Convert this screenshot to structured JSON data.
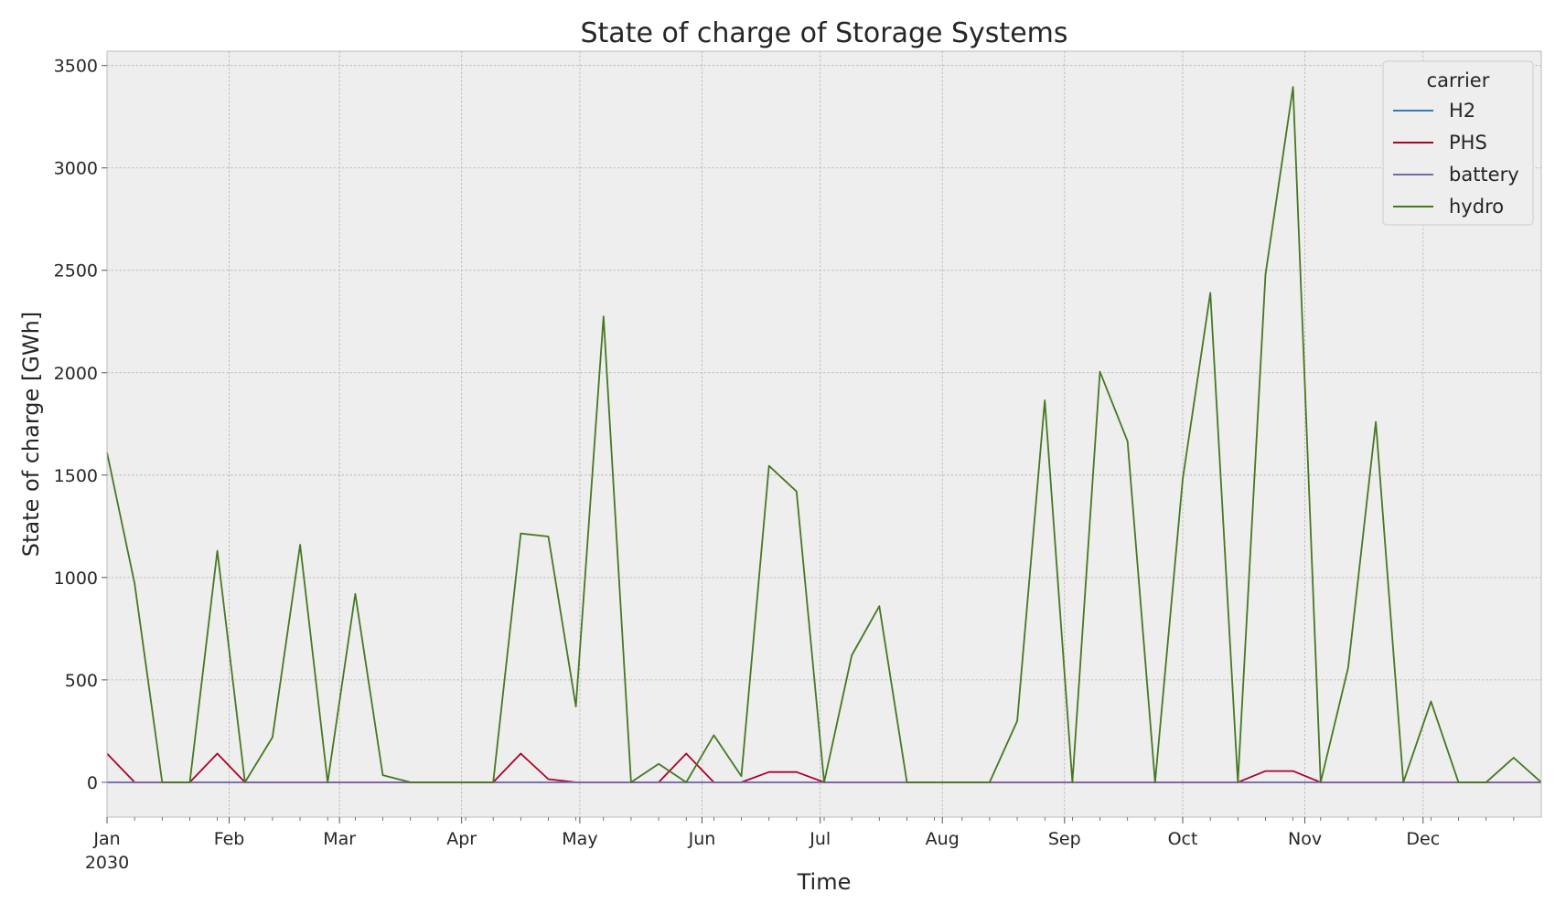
{
  "chart_data": {
    "type": "line",
    "title": "State of charge of Storage Systems",
    "xlabel": "Time",
    "ylabel": "State of charge [GWh]",
    "ylim": [
      -170,
      3570
    ],
    "yticks": [
      0,
      500,
      1000,
      1500,
      2000,
      2500,
      3000,
      3500
    ],
    "xrange": [
      "2030-01-01",
      "2030-12-31"
    ],
    "xticks": [
      {
        "date": "2030-01-01",
        "label": "Jan",
        "sublabel": "2030"
      },
      {
        "date": "2030-02-01",
        "label": "Feb"
      },
      {
        "date": "2030-03-01",
        "label": "Mar"
      },
      {
        "date": "2030-04-01",
        "label": "Apr"
      },
      {
        "date": "2030-05-01",
        "label": "May"
      },
      {
        "date": "2030-06-01",
        "label": "Jun"
      },
      {
        "date": "2030-07-01",
        "label": "Jul"
      },
      {
        "date": "2030-08-01",
        "label": "Aug"
      },
      {
        "date": "2030-09-01",
        "label": "Sep"
      },
      {
        "date": "2030-10-01",
        "label": "Oct"
      },
      {
        "date": "2030-11-01",
        "label": "Nov"
      },
      {
        "date": "2030-12-01",
        "label": "Dec"
      }
    ],
    "x": [
      "2030-01-01",
      "2030-01-08",
      "2030-01-15",
      "2030-01-22",
      "2030-01-29",
      "2030-02-05",
      "2030-02-12",
      "2030-02-19",
      "2030-02-26",
      "2030-03-05",
      "2030-03-12",
      "2030-03-19",
      "2030-03-26",
      "2030-04-02",
      "2030-04-09",
      "2030-04-16",
      "2030-04-23",
      "2030-04-30",
      "2030-05-07",
      "2030-05-14",
      "2030-05-21",
      "2030-05-28",
      "2030-06-04",
      "2030-06-11",
      "2030-06-18",
      "2030-06-25",
      "2030-07-02",
      "2030-07-09",
      "2030-07-16",
      "2030-07-23",
      "2030-07-30",
      "2030-08-06",
      "2030-08-13",
      "2030-08-20",
      "2030-08-27",
      "2030-09-03",
      "2030-09-10",
      "2030-09-17",
      "2030-09-24",
      "2030-10-01",
      "2030-10-08",
      "2030-10-15",
      "2030-10-22",
      "2030-10-29",
      "2030-11-05",
      "2030-11-12",
      "2030-11-19",
      "2030-11-26",
      "2030-12-03",
      "2030-12-10",
      "2030-12-17",
      "2030-12-24",
      "2030-12-31"
    ],
    "series": [
      {
        "name": "H2",
        "color": "#3a7ab0",
        "values": [
          0,
          0,
          0,
          0,
          0,
          0,
          0,
          0,
          0,
          0,
          0,
          0,
          0,
          0,
          0,
          0,
          0,
          0,
          0,
          0,
          0,
          0,
          0,
          0,
          0,
          0,
          0,
          0,
          0,
          0,
          0,
          0,
          0,
          0,
          0,
          0,
          0,
          0,
          0,
          0,
          0,
          0,
          0,
          0,
          0,
          0,
          0,
          0,
          0,
          0,
          0,
          0,
          0
        ]
      },
      {
        "name": "PHS",
        "color": "#a60628",
        "values": [
          140,
          0,
          0,
          0,
          140,
          0,
          0,
          0,
          0,
          0,
          0,
          0,
          0,
          0,
          0,
          140,
          15,
          0,
          0,
          0,
          0,
          140,
          0,
          0,
          50,
          50,
          0,
          0,
          0,
          0,
          0,
          0,
          0,
          0,
          0,
          0,
          0,
          0,
          0,
          0,
          0,
          0,
          55,
          55,
          0,
          0,
          0,
          0,
          0,
          0,
          0,
          0,
          0
        ]
      },
      {
        "name": "battery",
        "color": "#7a68a6",
        "values": [
          0,
          0,
          0,
          0,
          0,
          0,
          0,
          0,
          0,
          0,
          0,
          0,
          0,
          0,
          0,
          0,
          0,
          0,
          0,
          0,
          0,
          0,
          0,
          0,
          0,
          0,
          0,
          0,
          0,
          0,
          0,
          0,
          0,
          0,
          0,
          0,
          0,
          0,
          0,
          0,
          0,
          0,
          0,
          0,
          0,
          0,
          0,
          0,
          0,
          0,
          0,
          0,
          0
        ]
      },
      {
        "name": "hydro",
        "color": "#467821",
        "values": [
          1610,
          970,
          0,
          0,
          1130,
          0,
          220,
          1160,
          0,
          920,
          35,
          0,
          0,
          0,
          0,
          1215,
          1200,
          370,
          2275,
          0,
          90,
          0,
          230,
          30,
          1545,
          1420,
          0,
          620,
          860,
          0,
          0,
          0,
          0,
          300,
          1865,
          0,
          2005,
          1665,
          0,
          1480,
          2390,
          0,
          2480,
          3395,
          0,
          560,
          1760,
          0,
          395,
          0,
          0,
          120,
          0
        ]
      }
    ],
    "legend": {
      "title": "carrier",
      "placement": "top-right"
    },
    "grid": true,
    "colors": {
      "plot_background": "#eeeeee",
      "grid": "#b2b2b2"
    }
  }
}
